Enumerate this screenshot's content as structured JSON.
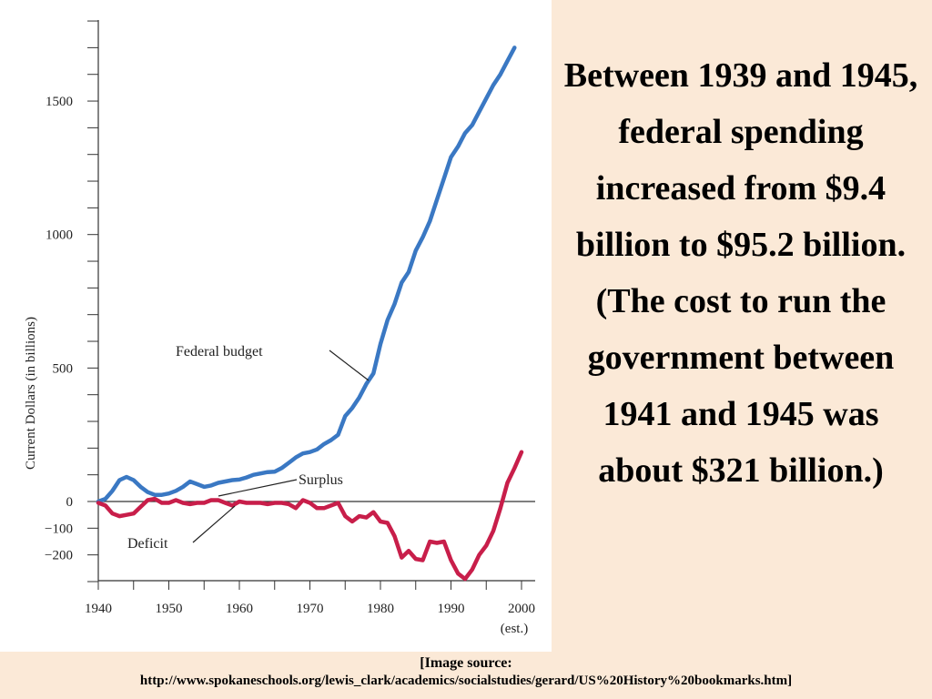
{
  "headline": "Between 1939 and 1945, federal spending increased from $9.4 billion to $95.2 billion. (The cost to run the government between 1941 and 1945 was about $321 billion.)",
  "source": {
    "line1": "[Image source:",
    "line2": "http://www.spokaneschools.org/lewis_clark/academics/socialstudies/gerard/US%20History%20bookmarks.htm]"
  },
  "chart_data": {
    "type": "line",
    "title": "",
    "xlabel": "",
    "ylabel": "Current Dollars (in billions)",
    "xlim": [
      1940,
      2000
    ],
    "ylim": [
      -300,
      1800
    ],
    "x_ticks": [
      "1940",
      "1950",
      "1960",
      "1970",
      "1980",
      "1990",
      "2000"
    ],
    "x_tick_note": "(est.)",
    "y_ticks": [
      "1500",
      "1000",
      "500",
      "0",
      "−100",
      "−200"
    ],
    "y_tick_values": [
      1500,
      1000,
      500,
      0,
      -100,
      -200
    ],
    "zero_line": true,
    "series": [
      {
        "name": "Federal budget",
        "color": "#3a78c3",
        "points": [
          [
            1940,
            0
          ],
          [
            1941,
            10
          ],
          [
            1942,
            40
          ],
          [
            1943,
            80
          ],
          [
            1944,
            92
          ],
          [
            1945,
            80
          ],
          [
            1946,
            55
          ],
          [
            1947,
            35
          ],
          [
            1948,
            25
          ],
          [
            1949,
            25
          ],
          [
            1950,
            30
          ],
          [
            1951,
            40
          ],
          [
            1952,
            55
          ],
          [
            1953,
            75
          ],
          [
            1954,
            65
          ],
          [
            1955,
            55
          ],
          [
            1956,
            60
          ],
          [
            1957,
            70
          ],
          [
            1958,
            75
          ],
          [
            1959,
            80
          ],
          [
            1960,
            82
          ],
          [
            1961,
            90
          ],
          [
            1962,
            100
          ],
          [
            1963,
            105
          ],
          [
            1964,
            110
          ],
          [
            1965,
            112
          ],
          [
            1966,
            125
          ],
          [
            1967,
            145
          ],
          [
            1968,
            165
          ],
          [
            1969,
            180
          ],
          [
            1970,
            185
          ],
          [
            1971,
            195
          ],
          [
            1972,
            215
          ],
          [
            1973,
            230
          ],
          [
            1974,
            250
          ],
          [
            1975,
            320
          ],
          [
            1976,
            350
          ],
          [
            1977,
            390
          ],
          [
            1978,
            440
          ],
          [
            1979,
            480
          ],
          [
            1980,
            590
          ],
          [
            1981,
            680
          ],
          [
            1982,
            740
          ],
          [
            1983,
            820
          ],
          [
            1984,
            860
          ],
          [
            1985,
            940
          ],
          [
            1986,
            990
          ],
          [
            1987,
            1050
          ],
          [
            1988,
            1130
          ],
          [
            1989,
            1210
          ],
          [
            1990,
            1290
          ],
          [
            1991,
            1330
          ],
          [
            1992,
            1380
          ],
          [
            1993,
            1410
          ],
          [
            1994,
            1460
          ],
          [
            1995,
            1510
          ],
          [
            1996,
            1560
          ],
          [
            1997,
            1600
          ],
          [
            1998,
            1650
          ],
          [
            1999,
            1700
          ]
        ]
      },
      {
        "name": "Surplus / Deficit",
        "color": "#c81e4a",
        "points": [
          [
            1940,
            -5
          ],
          [
            1941,
            -15
          ],
          [
            1942,
            -45
          ],
          [
            1943,
            -55
          ],
          [
            1944,
            -50
          ],
          [
            1945,
            -45
          ],
          [
            1946,
            -20
          ],
          [
            1947,
            5
          ],
          [
            1948,
            10
          ],
          [
            1949,
            -5
          ],
          [
            1950,
            -5
          ],
          [
            1951,
            5
          ],
          [
            1952,
            -5
          ],
          [
            1953,
            -10
          ],
          [
            1954,
            -5
          ],
          [
            1955,
            -5
          ],
          [
            1956,
            5
          ],
          [
            1957,
            5
          ],
          [
            1958,
            -5
          ],
          [
            1959,
            -15
          ],
          [
            1960,
            0
          ],
          [
            1961,
            -5
          ],
          [
            1962,
            -5
          ],
          [
            1963,
            -5
          ],
          [
            1964,
            -10
          ],
          [
            1965,
            -5
          ],
          [
            1966,
            -5
          ],
          [
            1967,
            -10
          ],
          [
            1968,
            -25
          ],
          [
            1969,
            5
          ],
          [
            1970,
            -5
          ],
          [
            1971,
            -25
          ],
          [
            1972,
            -25
          ],
          [
            1973,
            -15
          ],
          [
            1974,
            -5
          ],
          [
            1975,
            -55
          ],
          [
            1976,
            -75
          ],
          [
            1977,
            -55
          ],
          [
            1978,
            -60
          ],
          [
            1979,
            -40
          ],
          [
            1980,
            -75
          ],
          [
            1981,
            -80
          ],
          [
            1982,
            -130
          ],
          [
            1983,
            -210
          ],
          [
            1984,
            -185
          ],
          [
            1985,
            -215
          ],
          [
            1986,
            -220
          ],
          [
            1987,
            -150
          ],
          [
            1988,
            -155
          ],
          [
            1989,
            -150
          ],
          [
            1990,
            -220
          ],
          [
            1991,
            -270
          ],
          [
            1992,
            -290
          ],
          [
            1993,
            -255
          ],
          [
            1994,
            -200
          ],
          [
            1995,
            -165
          ],
          [
            1996,
            -110
          ],
          [
            1997,
            -25
          ],
          [
            1998,
            70
          ],
          [
            1999,
            125
          ],
          [
            2000,
            185
          ]
        ]
      }
    ],
    "annotations": [
      "Federal budget",
      "Surplus",
      "Deficit"
    ]
  }
}
